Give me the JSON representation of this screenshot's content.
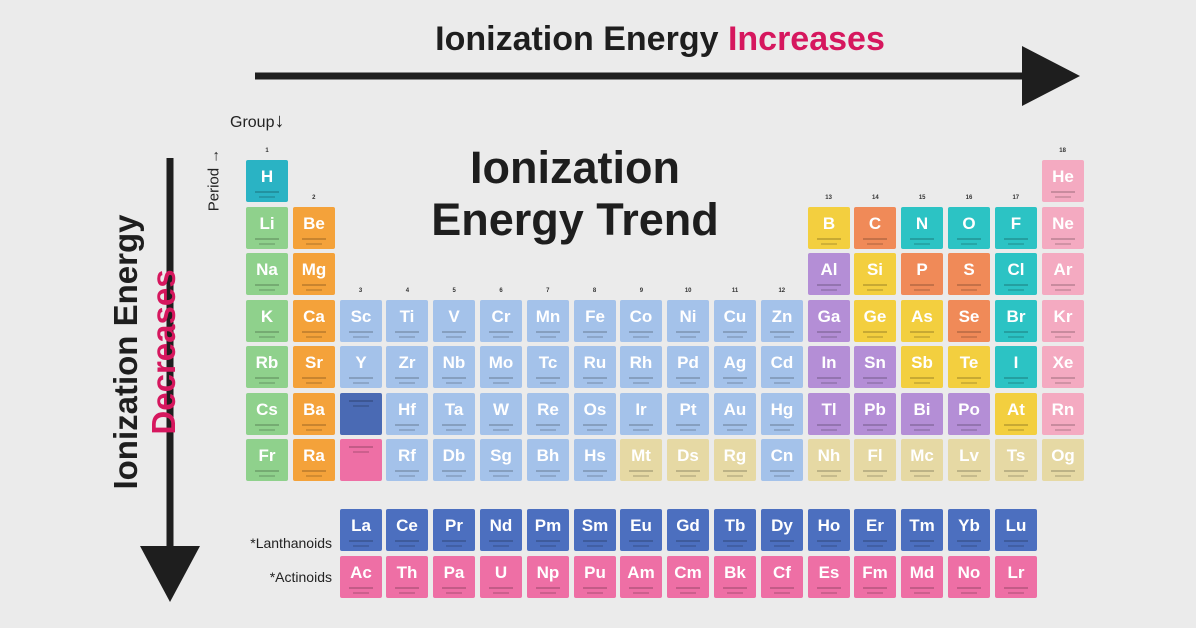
{
  "top_label": {
    "text": "Ionization Energy ",
    "accent": "Increases"
  },
  "side_label": {
    "text": "Ionization Energy",
    "accent": "Decreases"
  },
  "title": {
    "line1": "Ionization",
    "line2": "Energy Trend"
  },
  "group_label": {
    "text": "Group",
    "arrow": "↓"
  },
  "period_label": {
    "text": "Period",
    "arrow": "→"
  },
  "series_labels": {
    "lanthanoids": "*Lanthanoids",
    "actinoids": "*Actinoids"
  },
  "colors": {
    "accent": "#d6175e",
    "category": {
      "hydrogen": "#2ab3c4",
      "alkali": "#8fd18c",
      "alkaline": "#f4a23a",
      "transition": "#a4c2ea",
      "post": "#b48ed6",
      "metalloid": "#f3cf3f",
      "nonmetal": "#f08a58",
      "halogen": "#2cc3c4",
      "noble": "#f4aac1",
      "unknown": "#e6d9a4",
      "lanth": "#4c6fbf",
      "act": "#ee6fa5",
      "lanth_place": "#4a6ab4",
      "act_place": "#ee6fa5"
    }
  },
  "group_numbers": [
    "1",
    "2",
    "3",
    "4",
    "5",
    "6",
    "7",
    "8",
    "9",
    "10",
    "11",
    "12",
    "13",
    "14",
    "15",
    "16",
    "17",
    "18"
  ],
  "elements": [
    {
      "s": "H",
      "g": 1,
      "p": 1,
      "c": "hydrogen"
    },
    {
      "s": "He",
      "g": 18,
      "p": 1,
      "c": "noble"
    },
    {
      "s": "Li",
      "g": 1,
      "p": 2,
      "c": "alkali"
    },
    {
      "s": "Be",
      "g": 2,
      "p": 2,
      "c": "alkaline"
    },
    {
      "s": "B",
      "g": 13,
      "p": 2,
      "c": "metalloid"
    },
    {
      "s": "C",
      "g": 14,
      "p": 2,
      "c": "nonmetal"
    },
    {
      "s": "N",
      "g": 15,
      "p": 2,
      "c": "halogen"
    },
    {
      "s": "O",
      "g": 16,
      "p": 2,
      "c": "halogen"
    },
    {
      "s": "F",
      "g": 17,
      "p": 2,
      "c": "halogen"
    },
    {
      "s": "Ne",
      "g": 18,
      "p": 2,
      "c": "noble"
    },
    {
      "s": "Na",
      "g": 1,
      "p": 3,
      "c": "alkali"
    },
    {
      "s": "Mg",
      "g": 2,
      "p": 3,
      "c": "alkaline"
    },
    {
      "s": "Al",
      "g": 13,
      "p": 3,
      "c": "post"
    },
    {
      "s": "Si",
      "g": 14,
      "p": 3,
      "c": "metalloid"
    },
    {
      "s": "P",
      "g": 15,
      "p": 3,
      "c": "nonmetal"
    },
    {
      "s": "S",
      "g": 16,
      "p": 3,
      "c": "nonmetal"
    },
    {
      "s": "Cl",
      "g": 17,
      "p": 3,
      "c": "halogen"
    },
    {
      "s": "Ar",
      "g": 18,
      "p": 3,
      "c": "noble"
    },
    {
      "s": "K",
      "g": 1,
      "p": 4,
      "c": "alkali"
    },
    {
      "s": "Ca",
      "g": 2,
      "p": 4,
      "c": "alkaline"
    },
    {
      "s": "Sc",
      "g": 3,
      "p": 4,
      "c": "transition"
    },
    {
      "s": "Ti",
      "g": 4,
      "p": 4,
      "c": "transition"
    },
    {
      "s": "V",
      "g": 5,
      "p": 4,
      "c": "transition"
    },
    {
      "s": "Cr",
      "g": 6,
      "p": 4,
      "c": "transition"
    },
    {
      "s": "Mn",
      "g": 7,
      "p": 4,
      "c": "transition"
    },
    {
      "s": "Fe",
      "g": 8,
      "p": 4,
      "c": "transition"
    },
    {
      "s": "Co",
      "g": 9,
      "p": 4,
      "c": "transition"
    },
    {
      "s": "Ni",
      "g": 10,
      "p": 4,
      "c": "transition"
    },
    {
      "s": "Cu",
      "g": 11,
      "p": 4,
      "c": "transition"
    },
    {
      "s": "Zn",
      "g": 12,
      "p": 4,
      "c": "transition"
    },
    {
      "s": "Ga",
      "g": 13,
      "p": 4,
      "c": "post"
    },
    {
      "s": "Ge",
      "g": 14,
      "p": 4,
      "c": "metalloid"
    },
    {
      "s": "As",
      "g": 15,
      "p": 4,
      "c": "metalloid"
    },
    {
      "s": "Se",
      "g": 16,
      "p": 4,
      "c": "nonmetal"
    },
    {
      "s": "Br",
      "g": 17,
      "p": 4,
      "c": "halogen"
    },
    {
      "s": "Kr",
      "g": 18,
      "p": 4,
      "c": "noble"
    },
    {
      "s": "Rb",
      "g": 1,
      "p": 5,
      "c": "alkali"
    },
    {
      "s": "Sr",
      "g": 2,
      "p": 5,
      "c": "alkaline"
    },
    {
      "s": "Y",
      "g": 3,
      "p": 5,
      "c": "transition"
    },
    {
      "s": "Zr",
      "g": 4,
      "p": 5,
      "c": "transition"
    },
    {
      "s": "Nb",
      "g": 5,
      "p": 5,
      "c": "transition"
    },
    {
      "s": "Mo",
      "g": 6,
      "p": 5,
      "c": "transition"
    },
    {
      "s": "Tc",
      "g": 7,
      "p": 5,
      "c": "transition"
    },
    {
      "s": "Ru",
      "g": 8,
      "p": 5,
      "c": "transition"
    },
    {
      "s": "Rh",
      "g": 9,
      "p": 5,
      "c": "transition"
    },
    {
      "s": "Pd",
      "g": 10,
      "p": 5,
      "c": "transition"
    },
    {
      "s": "Ag",
      "g": 11,
      "p": 5,
      "c": "transition"
    },
    {
      "s": "Cd",
      "g": 12,
      "p": 5,
      "c": "transition"
    },
    {
      "s": "In",
      "g": 13,
      "p": 5,
      "c": "post"
    },
    {
      "s": "Sn",
      "g": 14,
      "p": 5,
      "c": "post"
    },
    {
      "s": "Sb",
      "g": 15,
      "p": 5,
      "c": "metalloid"
    },
    {
      "s": "Te",
      "g": 16,
      "p": 5,
      "c": "metalloid"
    },
    {
      "s": "I",
      "g": 17,
      "p": 5,
      "c": "halogen"
    },
    {
      "s": "Xe",
      "g": 18,
      "p": 5,
      "c": "noble"
    },
    {
      "s": "Cs",
      "g": 1,
      "p": 6,
      "c": "alkali"
    },
    {
      "s": "Ba",
      "g": 2,
      "p": 6,
      "c": "alkaline"
    },
    {
      "s": "",
      "g": 3,
      "p": 6,
      "c": "lanth_place"
    },
    {
      "s": "Hf",
      "g": 4,
      "p": 6,
      "c": "transition"
    },
    {
      "s": "Ta",
      "g": 5,
      "p": 6,
      "c": "transition"
    },
    {
      "s": "W",
      "g": 6,
      "p": 6,
      "c": "transition"
    },
    {
      "s": "Re",
      "g": 7,
      "p": 6,
      "c": "transition"
    },
    {
      "s": "Os",
      "g": 8,
      "p": 6,
      "c": "transition"
    },
    {
      "s": "Ir",
      "g": 9,
      "p": 6,
      "c": "transition"
    },
    {
      "s": "Pt",
      "g": 10,
      "p": 6,
      "c": "transition"
    },
    {
      "s": "Au",
      "g": 11,
      "p": 6,
      "c": "transition"
    },
    {
      "s": "Hg",
      "g": 12,
      "p": 6,
      "c": "transition"
    },
    {
      "s": "Tl",
      "g": 13,
      "p": 6,
      "c": "post"
    },
    {
      "s": "Pb",
      "g": 14,
      "p": 6,
      "c": "post"
    },
    {
      "s": "Bi",
      "g": 15,
      "p": 6,
      "c": "post"
    },
    {
      "s": "Po",
      "g": 16,
      "p": 6,
      "c": "post"
    },
    {
      "s": "At",
      "g": 17,
      "p": 6,
      "c": "metalloid"
    },
    {
      "s": "Rn",
      "g": 18,
      "p": 6,
      "c": "noble"
    },
    {
      "s": "Fr",
      "g": 1,
      "p": 7,
      "c": "alkali"
    },
    {
      "s": "Ra",
      "g": 2,
      "p": 7,
      "c": "alkaline"
    },
    {
      "s": "",
      "g": 3,
      "p": 7,
      "c": "act_place"
    },
    {
      "s": "Rf",
      "g": 4,
      "p": 7,
      "c": "transition"
    },
    {
      "s": "Db",
      "g": 5,
      "p": 7,
      "c": "transition"
    },
    {
      "s": "Sg",
      "g": 6,
      "p": 7,
      "c": "transition"
    },
    {
      "s": "Bh",
      "g": 7,
      "p": 7,
      "c": "transition"
    },
    {
      "s": "Hs",
      "g": 8,
      "p": 7,
      "c": "transition"
    },
    {
      "s": "Mt",
      "g": 9,
      "p": 7,
      "c": "unknown"
    },
    {
      "s": "Ds",
      "g": 10,
      "p": 7,
      "c": "unknown"
    },
    {
      "s": "Rg",
      "g": 11,
      "p": 7,
      "c": "unknown"
    },
    {
      "s": "Cn",
      "g": 12,
      "p": 7,
      "c": "transition"
    },
    {
      "s": "Nh",
      "g": 13,
      "p": 7,
      "c": "unknown"
    },
    {
      "s": "Fl",
      "g": 14,
      "p": 7,
      "c": "unknown"
    },
    {
      "s": "Mc",
      "g": 15,
      "p": 7,
      "c": "unknown"
    },
    {
      "s": "Lv",
      "g": 16,
      "p": 7,
      "c": "unknown"
    },
    {
      "s": "Ts",
      "g": 17,
      "p": 7,
      "c": "unknown"
    },
    {
      "s": "Og",
      "g": 18,
      "p": 7,
      "c": "unknown"
    }
  ],
  "lanthanoids": [
    "La",
    "Ce",
    "Pr",
    "Nd",
    "Pm",
    "Sm",
    "Eu",
    "Gd",
    "Tb",
    "Dy",
    "Ho",
    "Er",
    "Tm",
    "Yb",
    "Lu"
  ],
  "actinoids": [
    "Ac",
    "Th",
    "Pa",
    "U",
    "Np",
    "Pu",
    "Am",
    "Cm",
    "Bk",
    "Cf",
    "Es",
    "Fm",
    "Md",
    "No",
    "Lr"
  ]
}
